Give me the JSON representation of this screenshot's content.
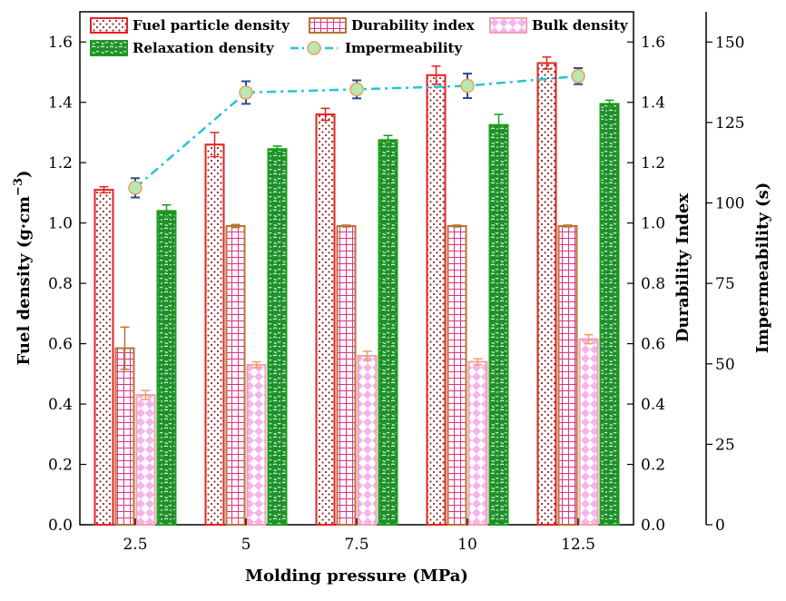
{
  "chart_data": {
    "type": "bar",
    "xlabel": "Molding pressure (MPa)",
    "ylabel_left": "Fuel density (g·cm",
    "ylabel_left_sup": "−3",
    "ylabel_left_close": ")",
    "ylabel_right1": "Durability Index",
    "ylabel_right2": "Impermeability (s)",
    "categories": [
      "2.5",
      "5",
      "7.5",
      "10",
      "12.5"
    ],
    "y_left": {
      "min": 0,
      "max": 1.7,
      "ticks": [
        "0.0",
        "0.2",
        "0.4",
        "0.6",
        "0.8",
        "1.0",
        "1.2",
        "1.4",
        "1.6"
      ]
    },
    "y_right1": {
      "min": 0,
      "max": 1.7,
      "ticks": [
        "0.0",
        "0.2",
        "0.4",
        "0.6",
        "0.8",
        "1.0",
        "1.2",
        "1.4",
        "1.6"
      ]
    },
    "y_right2": {
      "min": 0,
      "max": 159.4,
      "ticks": [
        "0",
        "25",
        "50",
        "75",
        "100",
        "125",
        "150"
      ]
    },
    "series": [
      {
        "name": "Fuel particle density",
        "kind": "bar",
        "axis": "left",
        "color": "#e82020",
        "values": [
          1.11,
          1.26,
          1.36,
          1.49,
          1.53
        ],
        "errors": [
          0.01,
          0.04,
          0.02,
          0.03,
          0.02
        ]
      },
      {
        "name": "Durability index",
        "kind": "bar",
        "axis": "right1",
        "color": "#b87333",
        "values": [
          0.585,
          0.99,
          0.99,
          0.99,
          0.99
        ],
        "errors": [
          0.07,
          0.005,
          0.003,
          0.003,
          0.003
        ]
      },
      {
        "name": "Bulk density",
        "kind": "bar",
        "axis": "left",
        "color": "#f0a0b0",
        "values": [
          0.43,
          0.53,
          0.56,
          0.54,
          0.615
        ],
        "errors": [
          0.015,
          0.01,
          0.015,
          0.01,
          0.015
        ]
      },
      {
        "name": "Relaxation density",
        "kind": "bar",
        "axis": "left",
        "color": "#1a9e1a",
        "values": [
          1.04,
          1.245,
          1.275,
          1.325,
          1.395
        ],
        "errors": [
          0.02,
          0.01,
          0.015,
          0.035,
          0.012
        ]
      },
      {
        "name": "Impermeability",
        "kind": "line",
        "axis": "right2",
        "color": "#22c5d6",
        "values": [
          104.7,
          134.3,
          135.3,
          136.4,
          139.4
        ],
        "errors": [
          3.0,
          3.5,
          2.8,
          3.8,
          2.5
        ]
      }
    ],
    "legend": [
      "Fuel particle density",
      "Durability index",
      "Bulk density",
      "Relaxation density",
      "Impermeability"
    ],
    "legend_position": "top"
  }
}
